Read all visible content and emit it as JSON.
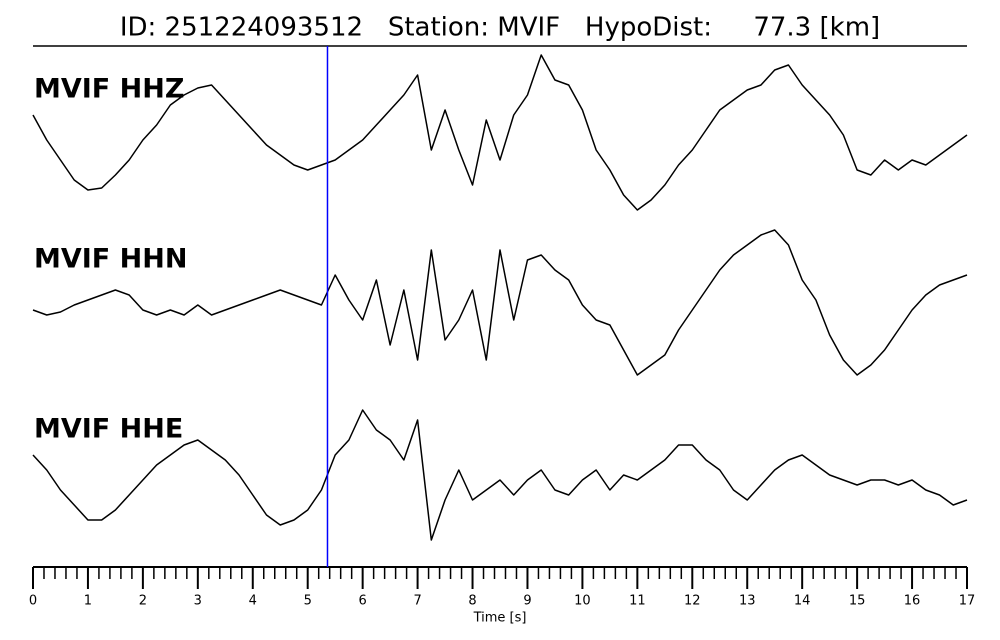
{
  "chart_data": {
    "type": "seismogram",
    "title": "ID: 251224093512   Station: MVIF   HypoDist:     77.3 [km]",
    "xlabel": "Time [s]",
    "xlim": [
      0,
      17
    ],
    "xticks": [
      0,
      1,
      2,
      3,
      4,
      5,
      6,
      7,
      8,
      9,
      10,
      11,
      12,
      13,
      14,
      15,
      16,
      17
    ],
    "xminorticks": [
      0.2,
      0.4,
      0.6,
      0.8,
      1.2,
      1.4,
      1.6,
      1.8,
      2.2,
      2.4,
      2.6,
      2.8,
      3.2,
      3.4,
      3.6,
      3.8,
      4.2,
      4.4,
      4.6,
      4.8,
      5.2,
      5.4,
      5.6,
      5.8,
      6.2,
      6.4,
      6.6,
      6.8,
      7.2,
      7.4,
      7.6,
      7.8,
      8.2,
      8.4,
      8.6,
      8.8,
      9.2,
      9.4,
      9.6,
      9.8,
      10.2,
      10.4,
      10.6,
      10.8,
      11.2,
      11.4,
      11.6,
      11.8,
      12.2,
      12.4,
      12.6,
      12.8,
      13.2,
      13.4,
      13.6,
      13.8,
      14.2,
      14.4,
      14.6,
      14.8,
      15.2,
      15.4,
      15.6,
      15.8,
      16.2,
      16.4,
      16.6,
      16.8
    ],
    "ylim": [
      -90,
      90
    ],
    "pick": {
      "x": 5.36,
      "color": "#0000ff"
    },
    "label_color": "#4c9a00",
    "x": [
      0,
      0.25,
      0.5,
      0.75,
      1,
      1.25,
      1.5,
      1.75,
      2,
      2.25,
      2.5,
      2.75,
      3,
      3.25,
      3.5,
      3.75,
      4,
      4.25,
      4.5,
      4.75,
      5,
      5.25,
      5.5,
      5.75,
      6,
      6.25,
      6.5,
      6.75,
      7,
      7.25,
      7.5,
      7.75,
      8,
      8.25,
      8.5,
      8.75,
      9,
      9.25,
      9.5,
      9.75,
      10,
      10.25,
      10.5,
      10.75,
      11,
      11.25,
      11.5,
      11.75,
      12,
      12.25,
      12.5,
      12.75,
      13,
      13.25,
      13.5,
      13.75,
      14,
      14.25,
      14.5,
      14.75,
      15,
      15.25,
      15.5,
      15.75,
      16,
      16.25,
      16.5,
      16.75,
      17
    ],
    "series": [
      {
        "name": "MVIF HHZ",
        "color": "#000000",
        "values": [
          25,
          0,
          -20,
          -40,
          -50,
          -48,
          -35,
          -20,
          0,
          15,
          35,
          45,
          52,
          55,
          40,
          25,
          10,
          -5,
          -15,
          -25,
          -30,
          -25,
          -20,
          -10,
          0,
          15,
          30,
          45,
          65,
          -10,
          30,
          -10,
          -45,
          20,
          -20,
          25,
          45,
          85,
          60,
          55,
          30,
          -10,
          -30,
          -55,
          -70,
          -60,
          -45,
          -25,
          -10,
          10,
          30,
          40,
          50,
          55,
          70,
          75,
          55,
          40,
          25,
          5,
          -30,
          -35,
          -20,
          -30,
          -20,
          -25,
          -15,
          -5,
          5
        ]
      },
      {
        "name": "MVIF HHN",
        "color": "#000000",
        "values": [
          0,
          -5,
          -2,
          5,
          10,
          15,
          20,
          15,
          0,
          -5,
          0,
          -5,
          5,
          -5,
          0,
          5,
          10,
          15,
          20,
          15,
          10,
          5,
          35,
          10,
          -10,
          30,
          -35,
          20,
          -50,
          60,
          -30,
          -10,
          20,
          -50,
          60,
          -10,
          50,
          55,
          40,
          30,
          5,
          -10,
          -15,
          -40,
          -65,
          -55,
          -45,
          -20,
          0,
          20,
          40,
          55,
          65,
          75,
          80,
          65,
          30,
          10,
          -25,
          -50,
          -65,
          -55,
          -40,
          -20,
          0,
          15,
          25,
          30,
          35
        ]
      },
      {
        "name": "MVIF HHE",
        "color": "#000000",
        "values": [
          25,
          10,
          -10,
          -25,
          -40,
          -40,
          -30,
          -15,
          0,
          15,
          25,
          35,
          40,
          30,
          20,
          5,
          -15,
          -35,
          -45,
          -40,
          -30,
          -10,
          25,
          40,
          70,
          50,
          40,
          20,
          60,
          -60,
          -20,
          10,
          -20,
          -10,
          0,
          -15,
          0,
          10,
          -10,
          -15,
          0,
          10,
          -10,
          5,
          0,
          10,
          20,
          35,
          35,
          20,
          10,
          -10,
          -20,
          -5,
          10,
          20,
          25,
          15,
          5,
          0,
          -5,
          0,
          0,
          -5,
          0,
          -10,
          -15,
          -25,
          -20
        ]
      }
    ]
  }
}
